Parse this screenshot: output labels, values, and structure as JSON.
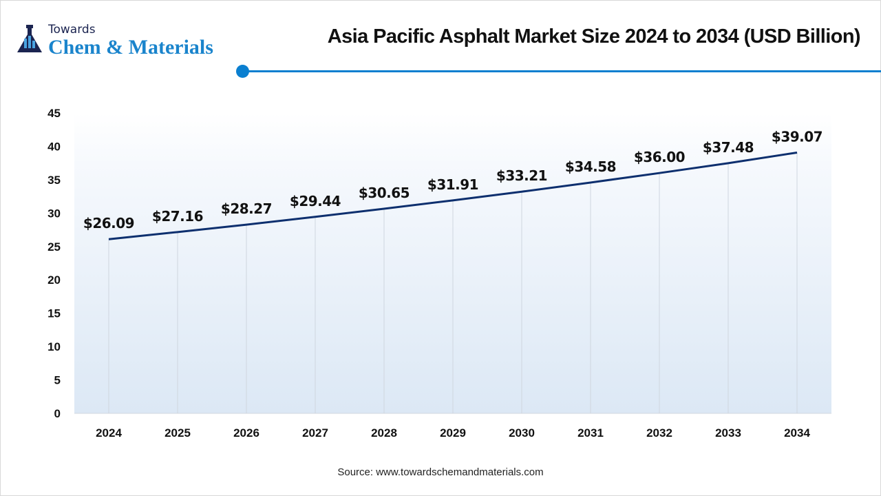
{
  "logo": {
    "top": "Towards",
    "main": "Chem & Materials"
  },
  "colors": {
    "line": "#0d2f6e",
    "accent": "#0a7fd0"
  },
  "source": "Source: www.towardschemandmaterials.com",
  "chart_data": {
    "type": "line",
    "title": "Asia Pacific Asphalt Market Size 2024 to 2034 (USD Billion)",
    "xlabel": "",
    "ylabel": "",
    "categories": [
      "2024",
      "2025",
      "2026",
      "2027",
      "2028",
      "2029",
      "2030",
      "2031",
      "2032",
      "2033",
      "2034"
    ],
    "values": [
      26.09,
      27.16,
      28.27,
      29.44,
      30.65,
      31.91,
      33.21,
      34.58,
      36.0,
      37.48,
      39.07
    ],
    "labels": [
      "$26.09",
      "$27.16",
      "$28.27",
      "$29.44",
      "$30.65",
      "$31.91",
      "$33.21",
      "$34.58",
      "$36.00",
      "$37.48",
      "$39.07"
    ],
    "yticks": [
      "0",
      "5",
      "10",
      "15",
      "20",
      "25",
      "30",
      "35",
      "40",
      "45"
    ],
    "ylim": [
      0,
      45
    ],
    "grid": "vertical",
    "legend": "none"
  }
}
